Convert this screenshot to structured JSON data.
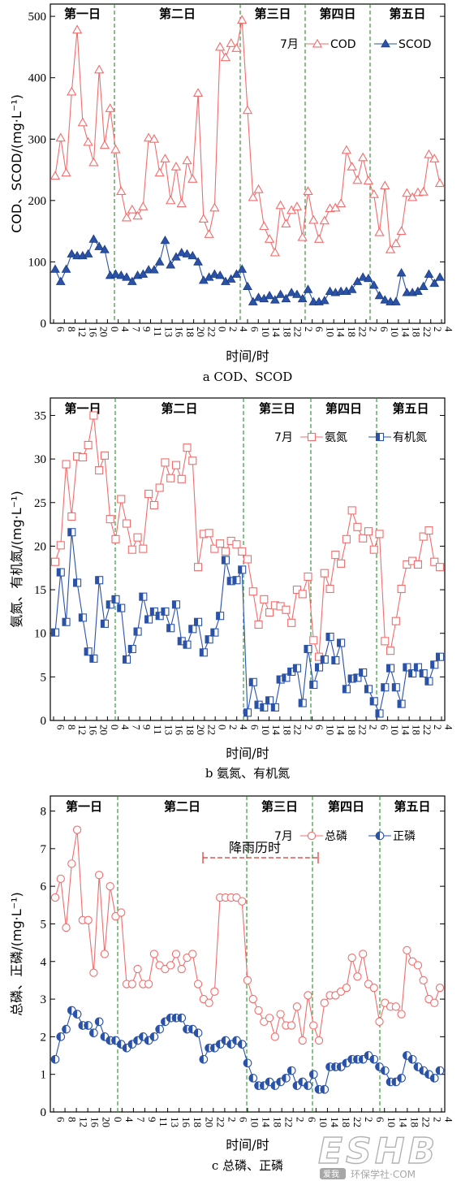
{
  "chart_data": [
    {
      "type": "line",
      "ylabel": "COD、SCOD/(mg·L⁻¹)",
      "xlabel": "时间/时",
      "caption": "a COD、SCOD",
      "ylim": [
        0,
        520
      ],
      "yticks": [
        0,
        100,
        200,
        300,
        400,
        500
      ],
      "x_tick_labels": [
        "6",
        "8",
        "12",
        "16",
        "20",
        "0",
        "4",
        "7",
        "9",
        "11",
        "13",
        "16",
        "18",
        "20",
        "22",
        "0",
        "2",
        "4",
        "6",
        "10",
        "14",
        "18",
        "22",
        "2",
        "6",
        "10",
        "14",
        "18",
        "22",
        "2",
        "6",
        "10",
        "14",
        "18",
        "22",
        "2",
        "4"
      ],
      "day_labels": [
        "第一日",
        "第二日",
        "第三日",
        "第四日",
        "第五日"
      ],
      "legend_prefix": "7月",
      "series": [
        {
          "name": "COD",
          "color": "#f26d6d",
          "marker": "triangle-open",
          "values": [
            240,
            302,
            245,
            377,
            478,
            327,
            295,
            262,
            413,
            290,
            350,
            283,
            215,
            172,
            185,
            175,
            190,
            302,
            300,
            245,
            268,
            200,
            255,
            195,
            265,
            235,
            375,
            170,
            145,
            188,
            450,
            433,
            456,
            448,
            494,
            347,
            205,
            218,
            158,
            137,
            115,
            192,
            162,
            184,
            190,
            140,
            215,
            168,
            137,
            167,
            187,
            188,
            195,
            282,
            255,
            233,
            270,
            232,
            210,
            148,
            224,
            120,
            130,
            150,
            212,
            205,
            213,
            214,
            275,
            268,
            228
          ]
        },
        {
          "name": "SCOD",
          "color": "#2a52a8",
          "marker": "triangle-filled",
          "values": [
            88,
            68,
            88,
            113,
            110,
            110,
            113,
            137,
            125,
            120,
            78,
            80,
            78,
            75,
            68,
            78,
            80,
            87,
            87,
            100,
            135,
            95,
            108,
            115,
            113,
            110,
            100,
            70,
            75,
            80,
            78,
            68,
            72,
            80,
            88,
            60,
            35,
            42,
            40,
            45,
            38,
            47,
            40,
            50,
            47,
            40,
            55,
            35,
            35,
            37,
            52,
            50,
            52,
            52,
            55,
            68,
            75,
            73,
            62,
            45,
            38,
            35,
            35,
            82,
            50,
            50,
            52,
            60,
            80,
            65,
            75
          ]
        }
      ]
    },
    {
      "type": "line",
      "ylabel": "氨氮、有机氮/(mg·L⁻¹)",
      "xlabel": "时间/时",
      "caption": "b 氨氮、有机氮",
      "ylim": [
        0,
        37
      ],
      "yticks": [
        0,
        5,
        10,
        15,
        20,
        25,
        30,
        35
      ],
      "x_tick_labels": [
        "6",
        "8",
        "12",
        "16",
        "20",
        "0",
        "4",
        "7",
        "9",
        "11",
        "13",
        "16",
        "18",
        "20",
        "22",
        "0",
        "2",
        "4",
        "6",
        "10",
        "14",
        "18",
        "22",
        "2",
        "6",
        "10",
        "14",
        "18",
        "22",
        "2",
        "6",
        "10",
        "14",
        "18",
        "22",
        "2",
        "4"
      ],
      "day_labels": [
        "第一日",
        "第二日",
        "第三日",
        "第四日",
        "第五日"
      ],
      "legend_prefix": "7月",
      "series": [
        {
          "name": "氨氮",
          "color": "#f26d6d",
          "marker": "square-open",
          "values": [
            18.2,
            20.1,
            29.4,
            23.4,
            30.3,
            30.2,
            31.6,
            35.0,
            28.7,
            30.4,
            23.1,
            20.8,
            25.4,
            22.6,
            19.6,
            21.0,
            19.7,
            26.0,
            24.7,
            26.7,
            29.6,
            27.8,
            29.3,
            27.7,
            31.3,
            29.8,
            17.6,
            21.4,
            21.5,
            19.7,
            20.3,
            19.4,
            20.6,
            20.2,
            19.4,
            18.5,
            14.8,
            11.0,
            13.9,
            12.4,
            13.2,
            13.1,
            12.7,
            11.2,
            15.0,
            14.5,
            16.5,
            9.2,
            7.3,
            16.9,
            15.1,
            19.0,
            18.0,
            20.8,
            24.1,
            22.2,
            20.9,
            21.7,
            19.6,
            21.4,
            9.1,
            8.0,
            11.4,
            15.1,
            17.9,
            18.3,
            17.9,
            21.1,
            21.8,
            18.2,
            17.6
          ]
        },
        {
          "name": "有机氮",
          "color": "#2a52a8",
          "marker": "square-half",
          "values": [
            10.1,
            17.0,
            11.3,
            21.6,
            15.8,
            11.8,
            7.9,
            7.1,
            16.1,
            11.1,
            13.3,
            13.9,
            12.9,
            7.0,
            8.2,
            10.2,
            14.2,
            11.6,
            12.5,
            12.0,
            12.5,
            10.6,
            13.3,
            9.1,
            8.7,
            10.5,
            11.3,
            7.8,
            9.3,
            10.1,
            12.0,
            18.4,
            16.0,
            16.1,
            17.3,
            0.9,
            4.4,
            1.8,
            1.5,
            2.3,
            1.5,
            4.7,
            4.9,
            5.6,
            6.0,
            2.0,
            8.2,
            4.1,
            6.1,
            7.0,
            9.6,
            6.9,
            8.9,
            3.6,
            4.8,
            4.9,
            5.5,
            3.6,
            2.2,
            0.8,
            3.8,
            6.0,
            3.8,
            1.9,
            6.1,
            5.4,
            6.1,
            5.4,
            4.5,
            6.4,
            7.3
          ]
        }
      ]
    },
    {
      "type": "line",
      "ylabel": "总磷、正磷/(mg·L⁻¹)",
      "xlabel": "时间/时",
      "caption": "c 总磷、正磷",
      "ylim": [
        0,
        8.4
      ],
      "yticks": [
        0,
        1,
        2,
        3,
        4,
        5,
        6,
        7,
        8
      ],
      "x_tick_labels": [
        "6",
        "8",
        "12",
        "16",
        "20",
        "0",
        "4",
        "7",
        "9",
        "11",
        "13",
        "16",
        "18",
        "20",
        "22",
        "2",
        "6",
        "10",
        "14",
        "18",
        "22",
        "2",
        "6",
        "10",
        "14",
        "18",
        "22",
        "2",
        "6",
        "10",
        "14",
        "18",
        "22",
        "2",
        "4"
      ],
      "day_labels": [
        "第一日",
        "第二日",
        "第三日",
        "第四日",
        "第五日"
      ],
      "legend_prefix": "7月",
      "annotation": "降雨历时",
      "series": [
        {
          "name": "总磷",
          "color": "#f26d6d",
          "marker": "circle-open",
          "values": [
            5.7,
            6.2,
            4.9,
            6.6,
            7.5,
            5.1,
            5.1,
            3.7,
            6.3,
            4.2,
            6.0,
            5.2,
            5.3,
            3.4,
            3.4,
            3.8,
            3.4,
            3.4,
            4.2,
            3.9,
            3.8,
            3.9,
            4.2,
            3.8,
            4.1,
            4.2,
            3.4,
            3.0,
            2.9,
            3.2,
            5.7,
            5.7,
            5.7,
            5.7,
            5.6,
            3.5,
            3.0,
            2.7,
            2.4,
            2.5,
            2.0,
            2.6,
            2.3,
            2.3,
            2.8,
            1.9,
            3.1,
            2.3,
            1.9,
            2.9,
            3.1,
            3.1,
            3.2,
            3.3,
            4.1,
            3.6,
            4.2,
            3.4,
            3.3,
            2.4,
            2.9,
            2.8,
            2.8,
            2.6,
            4.3,
            4.0,
            3.9,
            3.5,
            3.0,
            2.9,
            3.3
          ]
        },
        {
          "name": "正磷",
          "color": "#2a52a8",
          "marker": "circle-half",
          "values": [
            1.4,
            2.0,
            2.2,
            2.7,
            2.6,
            2.3,
            2.3,
            2.1,
            2.4,
            2.0,
            1.9,
            1.9,
            1.8,
            1.7,
            1.8,
            1.9,
            2.0,
            1.9,
            2.0,
            2.2,
            2.4,
            2.5,
            2.5,
            2.5,
            2.2,
            2.2,
            2.1,
            1.4,
            1.7,
            1.7,
            1.8,
            1.9,
            1.8,
            1.9,
            1.8,
            1.3,
            0.9,
            0.7,
            0.7,
            0.8,
            0.7,
            0.8,
            0.9,
            1.1,
            0.7,
            0.8,
            0.7,
            1.0,
            0.6,
            0.6,
            1.2,
            1.2,
            1.2,
            1.3,
            1.4,
            1.4,
            1.4,
            1.5,
            1.4,
            1.2,
            1.1,
            0.8,
            0.8,
            0.9,
            1.5,
            1.4,
            1.2,
            1.1,
            1.0,
            0.9,
            1.1
          ]
        }
      ]
    }
  ],
  "watermark": {
    "logo": "ESHB",
    "text": "环保学社·COM",
    "emblem": "爱我"
  }
}
